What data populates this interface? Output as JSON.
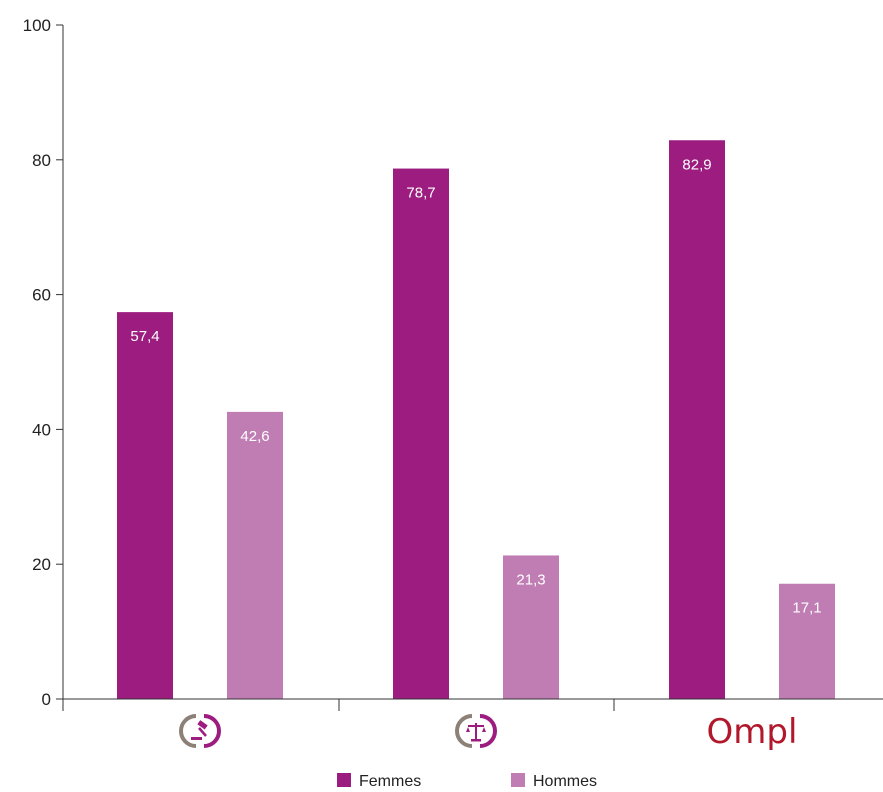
{
  "chart_data": {
    "type": "bar",
    "categories": [
      "",
      "",
      "Ompl"
    ],
    "category_icons": [
      "gavel-logo-icon",
      "scales-logo-icon",
      "ompl-logo"
    ],
    "series": [
      {
        "name": "Femmes",
        "values": [
          57.4,
          78.7,
          82.9
        ],
        "labels": [
          "57,4",
          "78,7",
          "82,9"
        ],
        "color": "#9c1c80"
      },
      {
        "name": "Hommes",
        "values": [
          42.6,
          21.3,
          17.1
        ],
        "labels": [
          "42,6",
          "21,3",
          "17,1"
        ],
        "color": "#c07db4"
      }
    ],
    "yticks": [
      "0",
      "20",
      "40",
      "60",
      "80",
      "100"
    ],
    "ylim": [
      0,
      100
    ],
    "legend_position": "bottom",
    "grid": false,
    "title": "",
    "xlabel": "",
    "ylabel": "",
    "logo_colors": {
      "grey": "#8c8077",
      "magenta": "#9c1c80",
      "red": "#b2182b"
    }
  }
}
